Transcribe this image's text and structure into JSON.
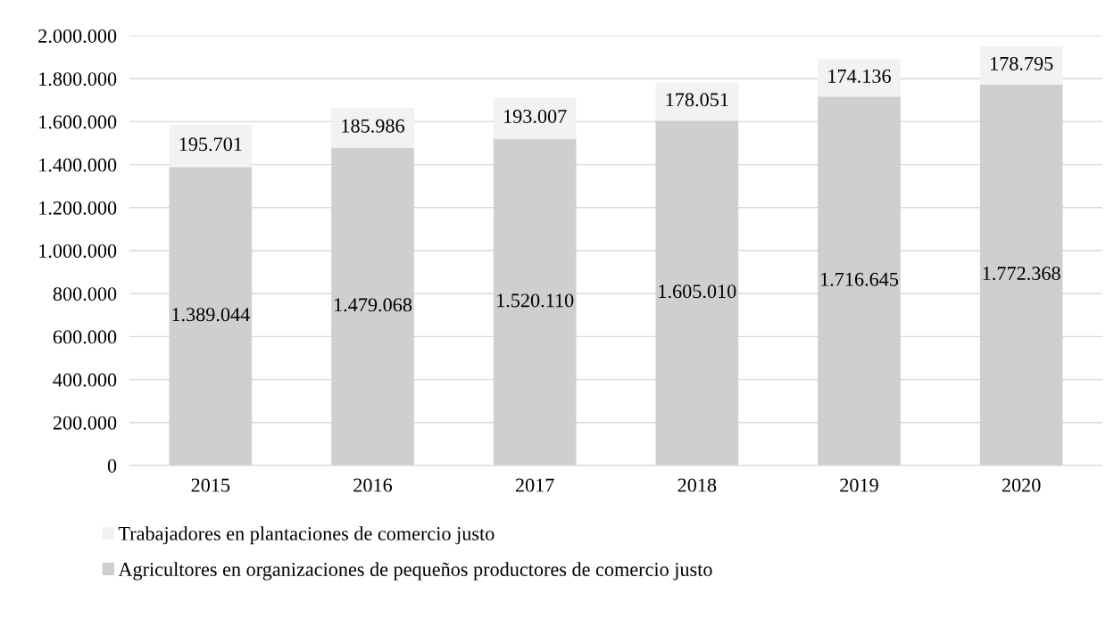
{
  "chart_data": {
    "type": "bar",
    "stacked": true,
    "categories": [
      "2015",
      "2016",
      "2017",
      "2018",
      "2019",
      "2020"
    ],
    "series": [
      {
        "name": "Agricultores en organizaciones de pequeños productores de comercio justo",
        "color": "#d0cece",
        "values": [
          1389044,
          1479068,
          1520110,
          1605010,
          1716645,
          1772368
        ],
        "value_labels": [
          "1.389.044",
          "1.479.068",
          "1.520.110",
          "1.605.010",
          "1.716.645",
          "1.772.368"
        ]
      },
      {
        "name": "Trabajadores en plantaciones de comercio justo",
        "color": "#f2f2f2",
        "values": [
          195701,
          185986,
          193007,
          178051,
          174136,
          178795
        ],
        "value_labels": [
          "195.701",
          "185.986",
          "193.007",
          "178.051",
          "174.136",
          "178.795"
        ]
      }
    ],
    "ylim": [
      0,
      2000000
    ],
    "yticks": [
      0,
      {
        "value": 200000,
        "label": "200.000"
      },
      {
        "value": 400000,
        "label": "400.000"
      },
      {
        "value": 600000,
        "label": "600.000"
      },
      {
        "value": 800000,
        "label": "800.000"
      },
      {
        "value": 1000000,
        "label": "1.000.000"
      },
      {
        "value": 1200000,
        "label": "1.200.000"
      },
      {
        "value": 1400000,
        "label": "1.400.000"
      },
      {
        "value": 1600000,
        "label": "1.600.000"
      },
      {
        "value": 1800000,
        "label": "1.800.000"
      },
      {
        "value": 2000000,
        "label": "2.000.000"
      }
    ],
    "grid": "y",
    "legend": "bottom"
  }
}
